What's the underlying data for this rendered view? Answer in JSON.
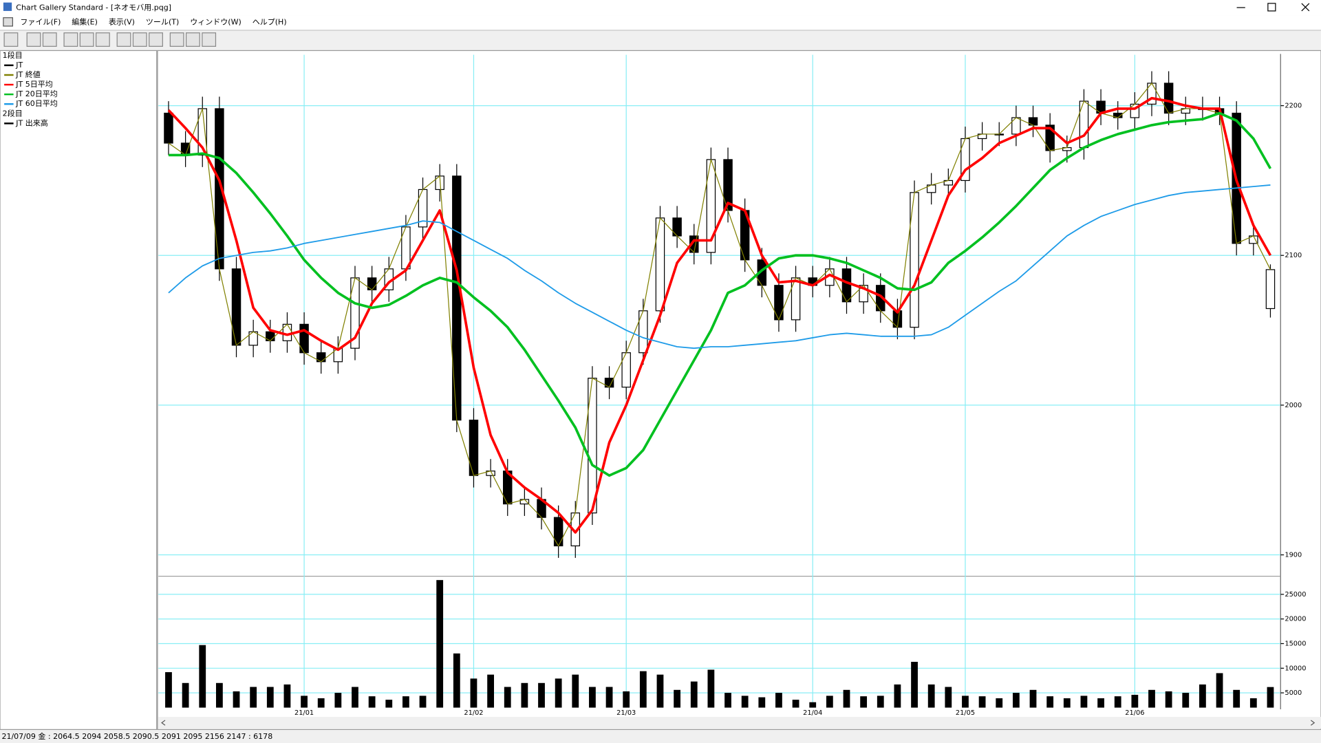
{
  "window": {
    "title": "Chart Gallery Standard - [ネオモバ用.pqg]",
    "menu": [
      "ファイル(F)",
      "編集(E)",
      "表示(V)",
      "ツール(T)",
      "ウィンドウ(W)",
      "ヘルプ(H)"
    ],
    "status_bar": "21/07/09 金 : 2064.5 2094 2058.5 2090.5  2091 2095 2156 2147 : 6178"
  },
  "chart_data": [
    {
      "type": "candlestick",
      "label": "1段目",
      "grid": true,
      "ylim": [
        1888,
        2234
      ],
      "yticks": [
        1900,
        2000,
        2100,
        2200
      ],
      "series": [
        {
          "name": "JT",
          "color": "#000000",
          "open": [
            2195,
            2175,
            2167,
            2198,
            2091,
            2040,
            2049,
            2043,
            2054,
            2035,
            2029,
            2038,
            2085,
            2077,
            2091,
            2119,
            2144,
            2153,
            1990,
            1953,
            1956,
            1934,
            1937,
            1925,
            1906,
            1928,
            2018,
            2012,
            2035,
            2063,
            2125,
            2113,
            2102,
            2164,
            2130,
            2097,
            2080,
            2057,
            2085,
            2080,
            2091,
            2069,
            2080,
            2063,
            2052,
            2142,
            2147,
            2150,
            2178,
            2181,
            2181,
            2192,
            2187,
            2170,
            2172,
            2203,
            2195,
            2192,
            2201,
            2215,
            2195,
            2198,
            2198,
            2195,
            2108,
            2064.5
          ],
          "high": [
            2203,
            2183,
            2206,
            2206,
            2099,
            2057,
            2057,
            2062,
            2062,
            2043,
            2046,
            2093,
            2093,
            2099,
            2127,
            2152,
            2161,
            2161,
            1998,
            1964,
            1964,
            1945,
            1945,
            1933,
            1936,
            2026,
            2026,
            2043,
            2071,
            2133,
            2133,
            2121,
            2172,
            2172,
            2138,
            2105,
            2088,
            2093,
            2093,
            2099,
            2099,
            2088,
            2088,
            2071,
            2150,
            2155,
            2158,
            2186,
            2189,
            2189,
            2200,
            2200,
            2195,
            2180,
            2211,
            2211,
            2203,
            2209,
            2223,
            2223,
            2206,
            2206,
            2206,
            2203,
            2121,
            2094
          ],
          "low": [
            2167,
            2159,
            2159,
            2083,
            2032,
            2032,
            2035,
            2035,
            2027,
            2021,
            2021,
            2030,
            2069,
            2069,
            2083,
            2111,
            2136,
            1982,
            1945,
            1945,
            1926,
            1926,
            1917,
            1898,
            1898,
            1920,
            2004,
            2004,
            2027,
            2055,
            2105,
            2094,
            2094,
            2122,
            2089,
            2072,
            2049,
            2049,
            2072,
            2072,
            2061,
            2061,
            2055,
            2044,
            2044,
            2134,
            2139,
            2142,
            2170,
            2173,
            2173,
            2179,
            2162,
            2162,
            2164,
            2187,
            2184,
            2184,
            2193,
            2187,
            2187,
            2190,
            2187,
            2100,
            2100,
            2058.5
          ],
          "close": [
            2175,
            2167,
            2198,
            2091,
            2040,
            2049,
            2043,
            2054,
            2035,
            2029,
            2038,
            2085,
            2077,
            2091,
            2119,
            2144,
            2153,
            1990,
            1953,
            1956,
            1934,
            1937,
            1925,
            1906,
            1928,
            2018,
            2012,
            2035,
            2063,
            2125,
            2113,
            2102,
            2164,
            2130,
            2097,
            2080,
            2057,
            2085,
            2080,
            2091,
            2069,
            2080,
            2063,
            2052,
            2142,
            2147,
            2150,
            2178,
            2181,
            2181,
            2192,
            2187,
            2170,
            2172,
            2203,
            2195,
            2192,
            2201,
            2215,
            2195,
            2198,
            2198,
            2195,
            2108,
            2113,
            2090.5
          ]
        },
        {
          "name": "JT 終値",
          "color": "#808000",
          "values": [
            2175,
            2167,
            2198,
            2091,
            2040,
            2049,
            2043,
            2054,
            2035,
            2029,
            2038,
            2085,
            2077,
            2091,
            2119,
            2144,
            2153,
            1990,
            1953,
            1956,
            1934,
            1937,
            1925,
            1906,
            1928,
            2018,
            2012,
            2035,
            2063,
            2125,
            2113,
            2102,
            2164,
            2130,
            2097,
            2080,
            2057,
            2085,
            2080,
            2091,
            2069,
            2080,
            2063,
            2052,
            2142,
            2147,
            2150,
            2178,
            2181,
            2181,
            2192,
            2187,
            2170,
            2172,
            2203,
            2195,
            2192,
            2201,
            2215,
            2195,
            2198,
            2198,
            2195,
            2108,
            2113,
            2090.5
          ]
        },
        {
          "name": "JT 5日平均",
          "color": "#ff0000",
          "values": [
            2197,
            2185,
            2172,
            2150,
            2110,
            2065,
            2050,
            2047,
            2050,
            2043,
            2037,
            2045,
            2068,
            2082,
            2090,
            2110,
            2130,
            2090,
            2025,
            1980,
            1955,
            1945,
            1937,
            1928,
            1915,
            1930,
            1975,
            2000,
            2030,
            2060,
            2095,
            2110,
            2110,
            2135,
            2130,
            2100,
            2082,
            2083,
            2080,
            2087,
            2082,
            2078,
            2073,
            2062,
            2080,
            2110,
            2140,
            2157,
            2165,
            2175,
            2180,
            2185,
            2185,
            2175,
            2180,
            2195,
            2198,
            2198,
            2205,
            2203,
            2200,
            2198,
            2198,
            2150,
            2120,
            2100
          ]
        },
        {
          "name": "JT 20日平均",
          "color": "#00c020",
          "values": [
            2167,
            2167,
            2168,
            2165,
            2155,
            2142,
            2128,
            2113,
            2097,
            2085,
            2075,
            2068,
            2065,
            2067,
            2073,
            2080,
            2085,
            2082,
            2072,
            2063,
            2052,
            2037,
            2020,
            2003,
            1985,
            1960,
            1953,
            1958,
            1970,
            1990,
            2010,
            2030,
            2050,
            2075,
            2080,
            2090,
            2098,
            2100,
            2100,
            2098,
            2095,
            2090,
            2085,
            2078,
            2077,
            2082,
            2095,
            2103,
            2112,
            2122,
            2133,
            2145,
            2157,
            2165,
            2172,
            2177,
            2181,
            2184,
            2187,
            2189,
            2190,
            2191,
            2195,
            2190,
            2178,
            2158
          ]
        },
        {
          "name": "JT 60日平均",
          "color": "#1e9be8",
          "values": [
            2075,
            2085,
            2093,
            2098,
            2100,
            2102,
            2103,
            2105,
            2108,
            2110,
            2112,
            2114,
            2116,
            2118,
            2120,
            2123,
            2122,
            2116,
            2110,
            2104,
            2098,
            2090,
            2083,
            2075,
            2068,
            2062,
            2056,
            2050,
            2045,
            2042,
            2039,
            2038,
            2039,
            2039,
            2040,
            2041,
            2042,
            2043,
            2045,
            2047,
            2048,
            2047,
            2046,
            2046,
            2046,
            2047,
            2052,
            2060,
            2068,
            2076,
            2083,
            2093,
            2103,
            2113,
            2120,
            2126,
            2130,
            2134,
            2137,
            2140,
            2142,
            2143,
            2144,
            2145,
            2146,
            2147
          ]
        }
      ]
    },
    {
      "type": "bar",
      "label": "2段目",
      "grid": true,
      "ylim": [
        2000,
        28000
      ],
      "yticks": [
        5000,
        10000,
        15000,
        20000,
        25000
      ],
      "categories": [
        null,
        null,
        null,
        null,
        null,
        null,
        null,
        null,
        "21/01",
        null,
        null,
        null,
        null,
        null,
        null,
        null,
        null,
        null,
        "21/02",
        null,
        null,
        null,
        null,
        null,
        null,
        null,
        null,
        "21/03",
        null,
        null,
        null,
        null,
        null,
        null,
        null,
        null,
        null,
        null,
        "21/04",
        null,
        null,
        null,
        null,
        null,
        null,
        null,
        null,
        "21/05",
        null,
        null,
        null,
        null,
        null,
        null,
        null,
        null,
        null,
        "21/06",
        null,
        null,
        null,
        null,
        null,
        null,
        null,
        null
      ],
      "series": [
        {
          "name": "JT 出来高",
          "color": "#000000",
          "values": [
            9200,
            7000,
            14700,
            7000,
            5300,
            6200,
            6200,
            6700,
            4400,
            3900,
            5000,
            6200,
            4300,
            3600,
            4300,
            4400,
            27900,
            13000,
            7900,
            8700,
            6200,
            7000,
            7000,
            7900,
            8700,
            6200,
            6200,
            5300,
            9400,
            8700,
            5600,
            7300,
            9700,
            5000,
            4400,
            4100,
            5000,
            3600,
            3100,
            4400,
            5600,
            4300,
            4400,
            6700,
            11300,
            6700,
            6200,
            4400,
            4300,
            3900,
            5000,
            5600,
            4300,
            3900,
            4400,
            3900,
            4300,
            4600,
            5600,
            5300,
            5000,
            6700,
            9000,
            5600,
            3900,
            6178
          ]
        }
      ]
    }
  ]
}
